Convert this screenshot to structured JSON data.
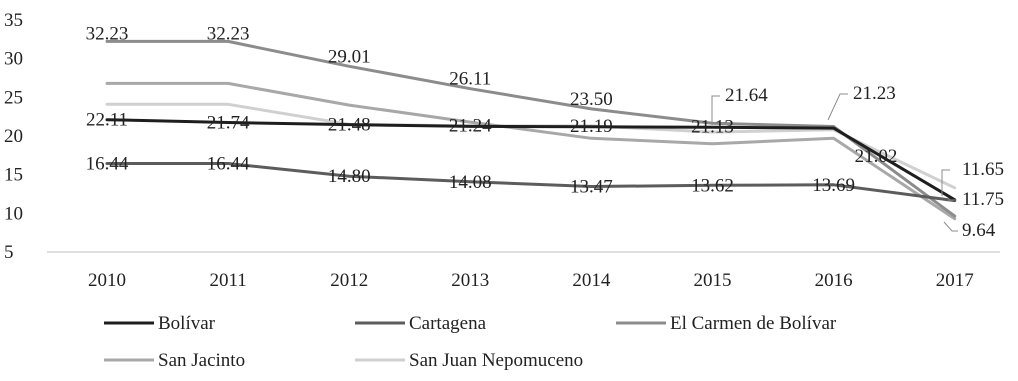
{
  "chart_data": {
    "type": "line",
    "title": "",
    "xlabel": "",
    "ylabel": "",
    "categories": [
      "2010",
      "2011",
      "2012",
      "2013",
      "2014",
      "2015",
      "2016",
      "2017"
    ],
    "ylim": [
      5,
      35
    ],
    "yticks": [
      "5",
      "10",
      "15",
      "20",
      "25",
      "30",
      "35"
    ],
    "grid": false,
    "legend_position": "bottom",
    "series": [
      {
        "name": "Bolívar",
        "color": "#1e1e1e",
        "values": [
          22.11,
          21.74,
          21.48,
          21.24,
          21.19,
          21.13,
          21.02,
          11.75
        ]
      },
      {
        "name": "Cartagena",
        "color": "#5c5c5c",
        "values": [
          16.44,
          16.44,
          14.8,
          14.08,
          13.47,
          13.62,
          13.69,
          11.65
        ]
      },
      {
        "name": "El Carmen de Bolívar",
        "color": "#8c8c8c",
        "values": [
          32.23,
          32.23,
          29.01,
          26.11,
          23.5,
          21.64,
          21.23,
          9.64
        ]
      },
      {
        "name": "San Jacinto",
        "color": "#a8a8a8",
        "values": [
          26.8,
          26.8,
          24.0,
          21.8,
          19.7,
          19.0,
          19.7,
          9.3
        ]
      },
      {
        "name": "San Juan Nepomuceno",
        "color": "#d0d0d0",
        "values": [
          24.1,
          24.1,
          21.5,
          21.3,
          21.3,
          20.5,
          20.8,
          13.3
        ]
      }
    ],
    "data_labels": [
      {
        "series": 2,
        "index": 0,
        "text": "32.23"
      },
      {
        "series": 2,
        "index": 1,
        "text": "32.23"
      },
      {
        "series": 2,
        "index": 2,
        "text": "29.01"
      },
      {
        "series": 2,
        "index": 3,
        "text": "26.11"
      },
      {
        "series": 2,
        "index": 4,
        "text": "23.50"
      },
      {
        "series": 2,
        "index": 5,
        "text": "21.64"
      },
      {
        "series": 2,
        "index": 6,
        "text": "21.23"
      },
      {
        "series": 2,
        "index": 7,
        "text": "9.64"
      },
      {
        "series": 0,
        "index": 0,
        "text": "22.11"
      },
      {
        "series": 0,
        "index": 1,
        "text": "21.74"
      },
      {
        "series": 0,
        "index": 2,
        "text": "21.48"
      },
      {
        "series": 0,
        "index": 3,
        "text": "21.24"
      },
      {
        "series": 0,
        "index": 4,
        "text": "21.19"
      },
      {
        "series": 0,
        "index": 5,
        "text": "21.13"
      },
      {
        "series": 0,
        "index": 6,
        "text": "21.02"
      },
      {
        "series": 0,
        "index": 7,
        "text": "11.75"
      },
      {
        "series": 1,
        "index": 0,
        "text": "16.44"
      },
      {
        "series": 1,
        "index": 1,
        "text": "16.44"
      },
      {
        "series": 1,
        "index": 2,
        "text": "14.80"
      },
      {
        "series": 1,
        "index": 3,
        "text": "14.08"
      },
      {
        "series": 1,
        "index": 4,
        "text": "13.47"
      },
      {
        "series": 1,
        "index": 5,
        "text": "13.62"
      },
      {
        "series": 1,
        "index": 6,
        "text": "13.69"
      },
      {
        "series": 1,
        "index": 7,
        "text": "11.65"
      }
    ]
  }
}
